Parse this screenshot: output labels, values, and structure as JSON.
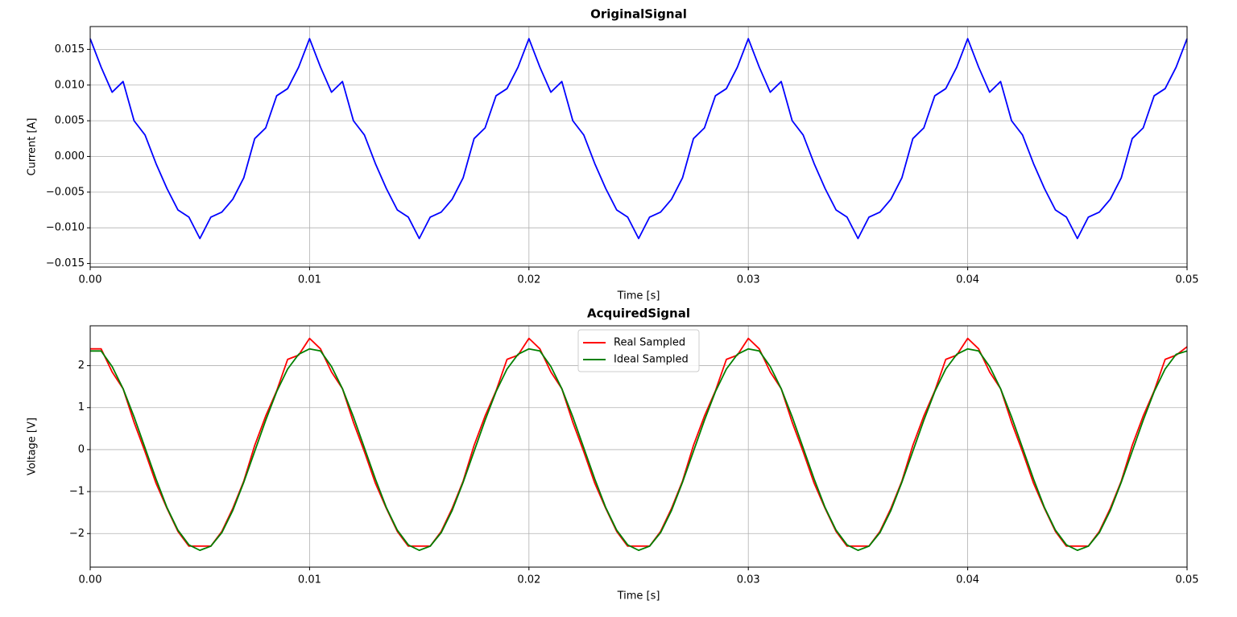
{
  "chart_data": [
    {
      "type": "line",
      "title": "OriginalSignal",
      "xlabel": "Time [s]",
      "ylabel": "Current [A]",
      "x": [
        0,
        0.0005,
        0.001,
        0.0015,
        0.002,
        0.0025,
        0.003,
        0.0035,
        0.004,
        0.0045,
        0.005,
        0.0055,
        0.006,
        0.0065,
        0.007,
        0.0075,
        0.008,
        0.0085,
        0.009,
        0.0095,
        0.01,
        0.0105,
        0.011,
        0.0115,
        0.012,
        0.0125,
        0.013,
        0.0135,
        0.014,
        0.0145,
        0.015,
        0.0155,
        0.016,
        0.0165,
        0.017,
        0.0175,
        0.018,
        0.0185,
        0.019,
        0.0195,
        0.02,
        0.0205,
        0.021,
        0.0215,
        0.022,
        0.0225,
        0.023,
        0.0235,
        0.024,
        0.0245,
        0.025,
        0.0255,
        0.026,
        0.0265,
        0.027,
        0.0275,
        0.028,
        0.0285,
        0.029,
        0.0295,
        0.03,
        0.0305,
        0.031,
        0.0315,
        0.032,
        0.0325,
        0.033,
        0.0335,
        0.034,
        0.0345,
        0.035,
        0.0355,
        0.036,
        0.0365,
        0.037,
        0.0375,
        0.038,
        0.0385,
        0.039,
        0.0395,
        0.04,
        0.0405,
        0.041,
        0.0415,
        0.042,
        0.0425,
        0.043,
        0.0435,
        0.044,
        0.0445,
        0.045,
        0.0455,
        0.046,
        0.0465,
        0.047,
        0.0475,
        0.048,
        0.0485,
        0.049,
        0.0495,
        0.05
      ],
      "series": [
        {
          "color": "#0000ff",
          "values": [
            0.0165,
            0.0125,
            0.009,
            0.0105,
            0.005,
            0.003,
            -0.001,
            -0.0045,
            -0.0075,
            -0.0085,
            -0.0115,
            -0.0085,
            -0.0078,
            -0.006,
            -0.003,
            0.0025,
            0.004,
            0.0085,
            0.0095,
            0.0125,
            0.0165,
            0.0125,
            0.009,
            0.0105,
            0.005,
            0.003,
            -0.001,
            -0.0045,
            -0.0075,
            -0.0085,
            -0.0115,
            -0.0085,
            -0.0078,
            -0.006,
            -0.003,
            0.0025,
            0.004,
            0.0085,
            0.0095,
            0.0125,
            0.0165,
            0.0125,
            0.009,
            0.0105,
            0.005,
            0.003,
            -0.001,
            -0.0045,
            -0.0075,
            -0.0085,
            -0.0115,
            -0.0085,
            -0.0078,
            -0.006,
            -0.003,
            0.0025,
            0.004,
            0.0085,
            0.0095,
            0.0125,
            0.0165,
            0.0125,
            0.009,
            0.0105,
            0.005,
            0.003,
            -0.001,
            -0.0045,
            -0.0075,
            -0.0085,
            -0.0115,
            -0.0085,
            -0.0078,
            -0.006,
            -0.003,
            0.0025,
            0.004,
            0.0085,
            0.0095,
            0.0125,
            0.0165,
            0.0125,
            0.009,
            0.0105,
            0.005,
            0.003,
            -0.001,
            -0.0045,
            -0.0075,
            -0.0085,
            -0.0115,
            -0.0085,
            -0.0078,
            -0.006,
            -0.003,
            0.0025,
            0.004,
            0.0085,
            0.0095,
            0.0125,
            0.0165
          ]
        }
      ],
      "xlim": [
        0,
        0.05
      ],
      "xticks": [
        {
          "value": 0,
          "label": "0.00"
        },
        0.01,
        0.02,
        0.03,
        0.04,
        0.05
      ],
      "ylim": [
        -0.0155,
        0.0182
      ],
      "yticks": [
        {
          "value": -0.015,
          "label": "−0.015"
        },
        {
          "value": -0.01,
          "label": "−0.010"
        },
        {
          "value": -0.005,
          "label": "−0.005"
        },
        {
          "value": 0,
          "label": "0.000"
        },
        {
          "value": 0.005,
          "label": "0.005"
        },
        {
          "value": 0.01,
          "label": "0.010"
        },
        {
          "value": 0.015,
          "label": "0.015"
        }
      ],
      "grid": true
    },
    {
      "type": "line",
      "title": "AcquiredSignal",
      "xlabel": "Time [s]",
      "ylabel": "Voltage [V]",
      "x": [
        0,
        0.0005,
        0.001,
        0.0015,
        0.002,
        0.0025,
        0.003,
        0.0035,
        0.004,
        0.0045,
        0.005,
        0.0055,
        0.006,
        0.0065,
        0.007,
        0.0075,
        0.008,
        0.0085,
        0.009,
        0.0095,
        0.01,
        0.0105,
        0.011,
        0.0115,
        0.012,
        0.0125,
        0.013,
        0.0135,
        0.014,
        0.0145,
        0.015,
        0.0155,
        0.016,
        0.0165,
        0.017,
        0.0175,
        0.018,
        0.0185,
        0.019,
        0.0195,
        0.02,
        0.0205,
        0.021,
        0.0215,
        0.022,
        0.0225,
        0.023,
        0.0235,
        0.024,
        0.0245,
        0.025,
        0.0255,
        0.026,
        0.0265,
        0.027,
        0.0275,
        0.028,
        0.0285,
        0.029,
        0.0295,
        0.03,
        0.0305,
        0.031,
        0.0315,
        0.032,
        0.0325,
        0.033,
        0.0335,
        0.034,
        0.0345,
        0.035,
        0.0355,
        0.036,
        0.0365,
        0.037,
        0.0375,
        0.038,
        0.0385,
        0.039,
        0.0395,
        0.04,
        0.0405,
        0.041,
        0.0415,
        0.042,
        0.0425,
        0.043,
        0.0435,
        0.044,
        0.0445,
        0.045,
        0.0455,
        0.046,
        0.0465,
        0.047,
        0.0475,
        0.048,
        0.0485,
        0.049,
        0.0495,
        0.05
      ],
      "series": [
        {
          "name": "Real Sampled",
          "color": "#ff0000",
          "values": [
            2.4,
            2.4,
            1.85,
            1.45,
            0.65,
            -0.05,
            -0.8,
            -1.4,
            -1.95,
            -2.3,
            -2.3,
            -2.3,
            -1.95,
            -1.4,
            -0.75,
            0.1,
            0.8,
            1.4,
            2.15,
            2.25,
            2.65,
            2.4,
            1.85,
            1.45,
            0.65,
            -0.05,
            -0.8,
            -1.4,
            -1.95,
            -2.3,
            -2.3,
            -2.3,
            -1.95,
            -1.4,
            -0.75,
            0.1,
            0.8,
            1.4,
            2.15,
            2.25,
            2.65,
            2.4,
            1.85,
            1.45,
            0.65,
            -0.05,
            -0.8,
            -1.4,
            -1.95,
            -2.3,
            -2.3,
            -2.3,
            -1.95,
            -1.4,
            -0.75,
            0.1,
            0.8,
            1.4,
            2.15,
            2.25,
            2.65,
            2.4,
            1.85,
            1.45,
            0.65,
            -0.05,
            -0.8,
            -1.4,
            -1.95,
            -2.3,
            -2.3,
            -2.3,
            -1.95,
            -1.4,
            -0.75,
            0.1,
            0.8,
            1.4,
            2.15,
            2.25,
            2.65,
            2.4,
            1.85,
            1.45,
            0.65,
            -0.05,
            -0.8,
            -1.4,
            -1.95,
            -2.3,
            -2.3,
            -2.3,
            -1.95,
            -1.4,
            -0.75,
            0.1,
            0.8,
            1.4,
            2.15,
            2.25,
            2.45
          ]
        },
        {
          "name": "Ideal Sampled",
          "color": "#008000",
          "values": [
            2.35,
            2.35,
            1.98,
            1.45,
            0.78,
            0.04,
            -0.7,
            -1.38,
            -1.92,
            -2.27,
            -2.4,
            -2.3,
            -1.98,
            -1.45,
            -0.78,
            -0.04,
            0.7,
            1.38,
            1.92,
            2.27,
            2.4,
            2.35,
            1.98,
            1.45,
            0.78,
            0.04,
            -0.7,
            -1.38,
            -1.92,
            -2.27,
            -2.4,
            -2.3,
            -1.98,
            -1.45,
            -0.78,
            -0.04,
            0.7,
            1.38,
            1.92,
            2.27,
            2.4,
            2.35,
            1.98,
            1.45,
            0.78,
            0.04,
            -0.7,
            -1.38,
            -1.92,
            -2.27,
            -2.4,
            -2.3,
            -1.98,
            -1.45,
            -0.78,
            -0.04,
            0.7,
            1.38,
            1.92,
            2.27,
            2.4,
            2.35,
            1.98,
            1.45,
            0.78,
            0.04,
            -0.7,
            -1.38,
            -1.92,
            -2.27,
            -2.4,
            -2.3,
            -1.98,
            -1.45,
            -0.78,
            -0.04,
            0.7,
            1.38,
            1.92,
            2.27,
            2.4,
            2.35,
            1.98,
            1.45,
            0.78,
            0.04,
            -0.7,
            -1.38,
            -1.92,
            -2.27,
            -2.4,
            -2.3,
            -1.98,
            -1.45,
            -0.78,
            -0.04,
            0.7,
            1.38,
            1.92,
            2.27,
            2.35
          ]
        }
      ],
      "xlim": [
        0,
        0.05
      ],
      "xticks": [
        {
          "value": 0,
          "label": "0.00"
        },
        0.01,
        0.02,
        0.03,
        0.04,
        0.05
      ],
      "ylim": [
        -2.8,
        2.95
      ],
      "yticks": [
        {
          "value": -2,
          "label": "−2"
        },
        {
          "value": -1,
          "label": "−1"
        },
        0,
        1,
        2
      ],
      "grid": true,
      "legend": "upper center"
    }
  ]
}
